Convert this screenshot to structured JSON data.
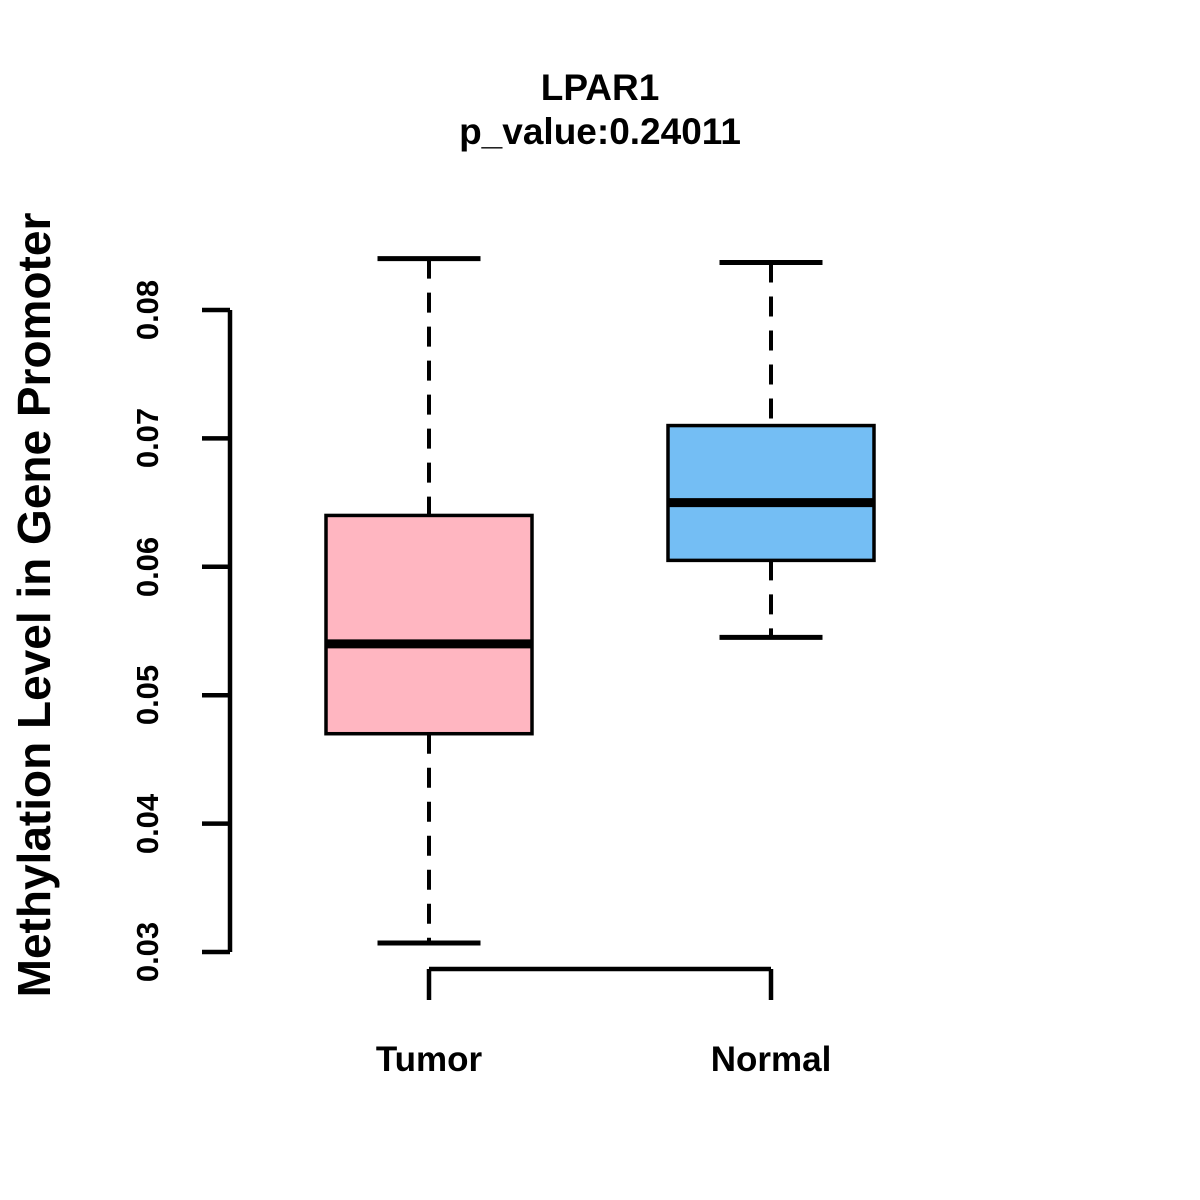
{
  "chart_data": {
    "type": "boxplot",
    "title": "LPAR1",
    "subtitle": "p_value:0.24011",
    "p_value": "0.24011",
    "ylabel": "Methylation Level in Gene Promoter",
    "xlabel": "",
    "categories": [
      "Tumor",
      "Normal"
    ],
    "yticks": [
      0.03,
      0.04,
      0.05,
      0.06,
      0.07,
      0.08
    ],
    "ytick_range": [
      0.03,
      0.08
    ],
    "grid": "off",
    "legend": "none",
    "series": [
      {
        "name": "Tumor",
        "color": "#FFB6C1",
        "whisker_low": 0.0307,
        "q1": 0.047,
        "median": 0.054,
        "q3": 0.064,
        "whisker_high": 0.084
      },
      {
        "name": "Normal",
        "color": "#74BEF4",
        "whisker_low": 0.0545,
        "q1": 0.0605,
        "median": 0.065,
        "q3": 0.071,
        "whisker_high": 0.0837
      }
    ],
    "stroke_color": "#000000"
  }
}
